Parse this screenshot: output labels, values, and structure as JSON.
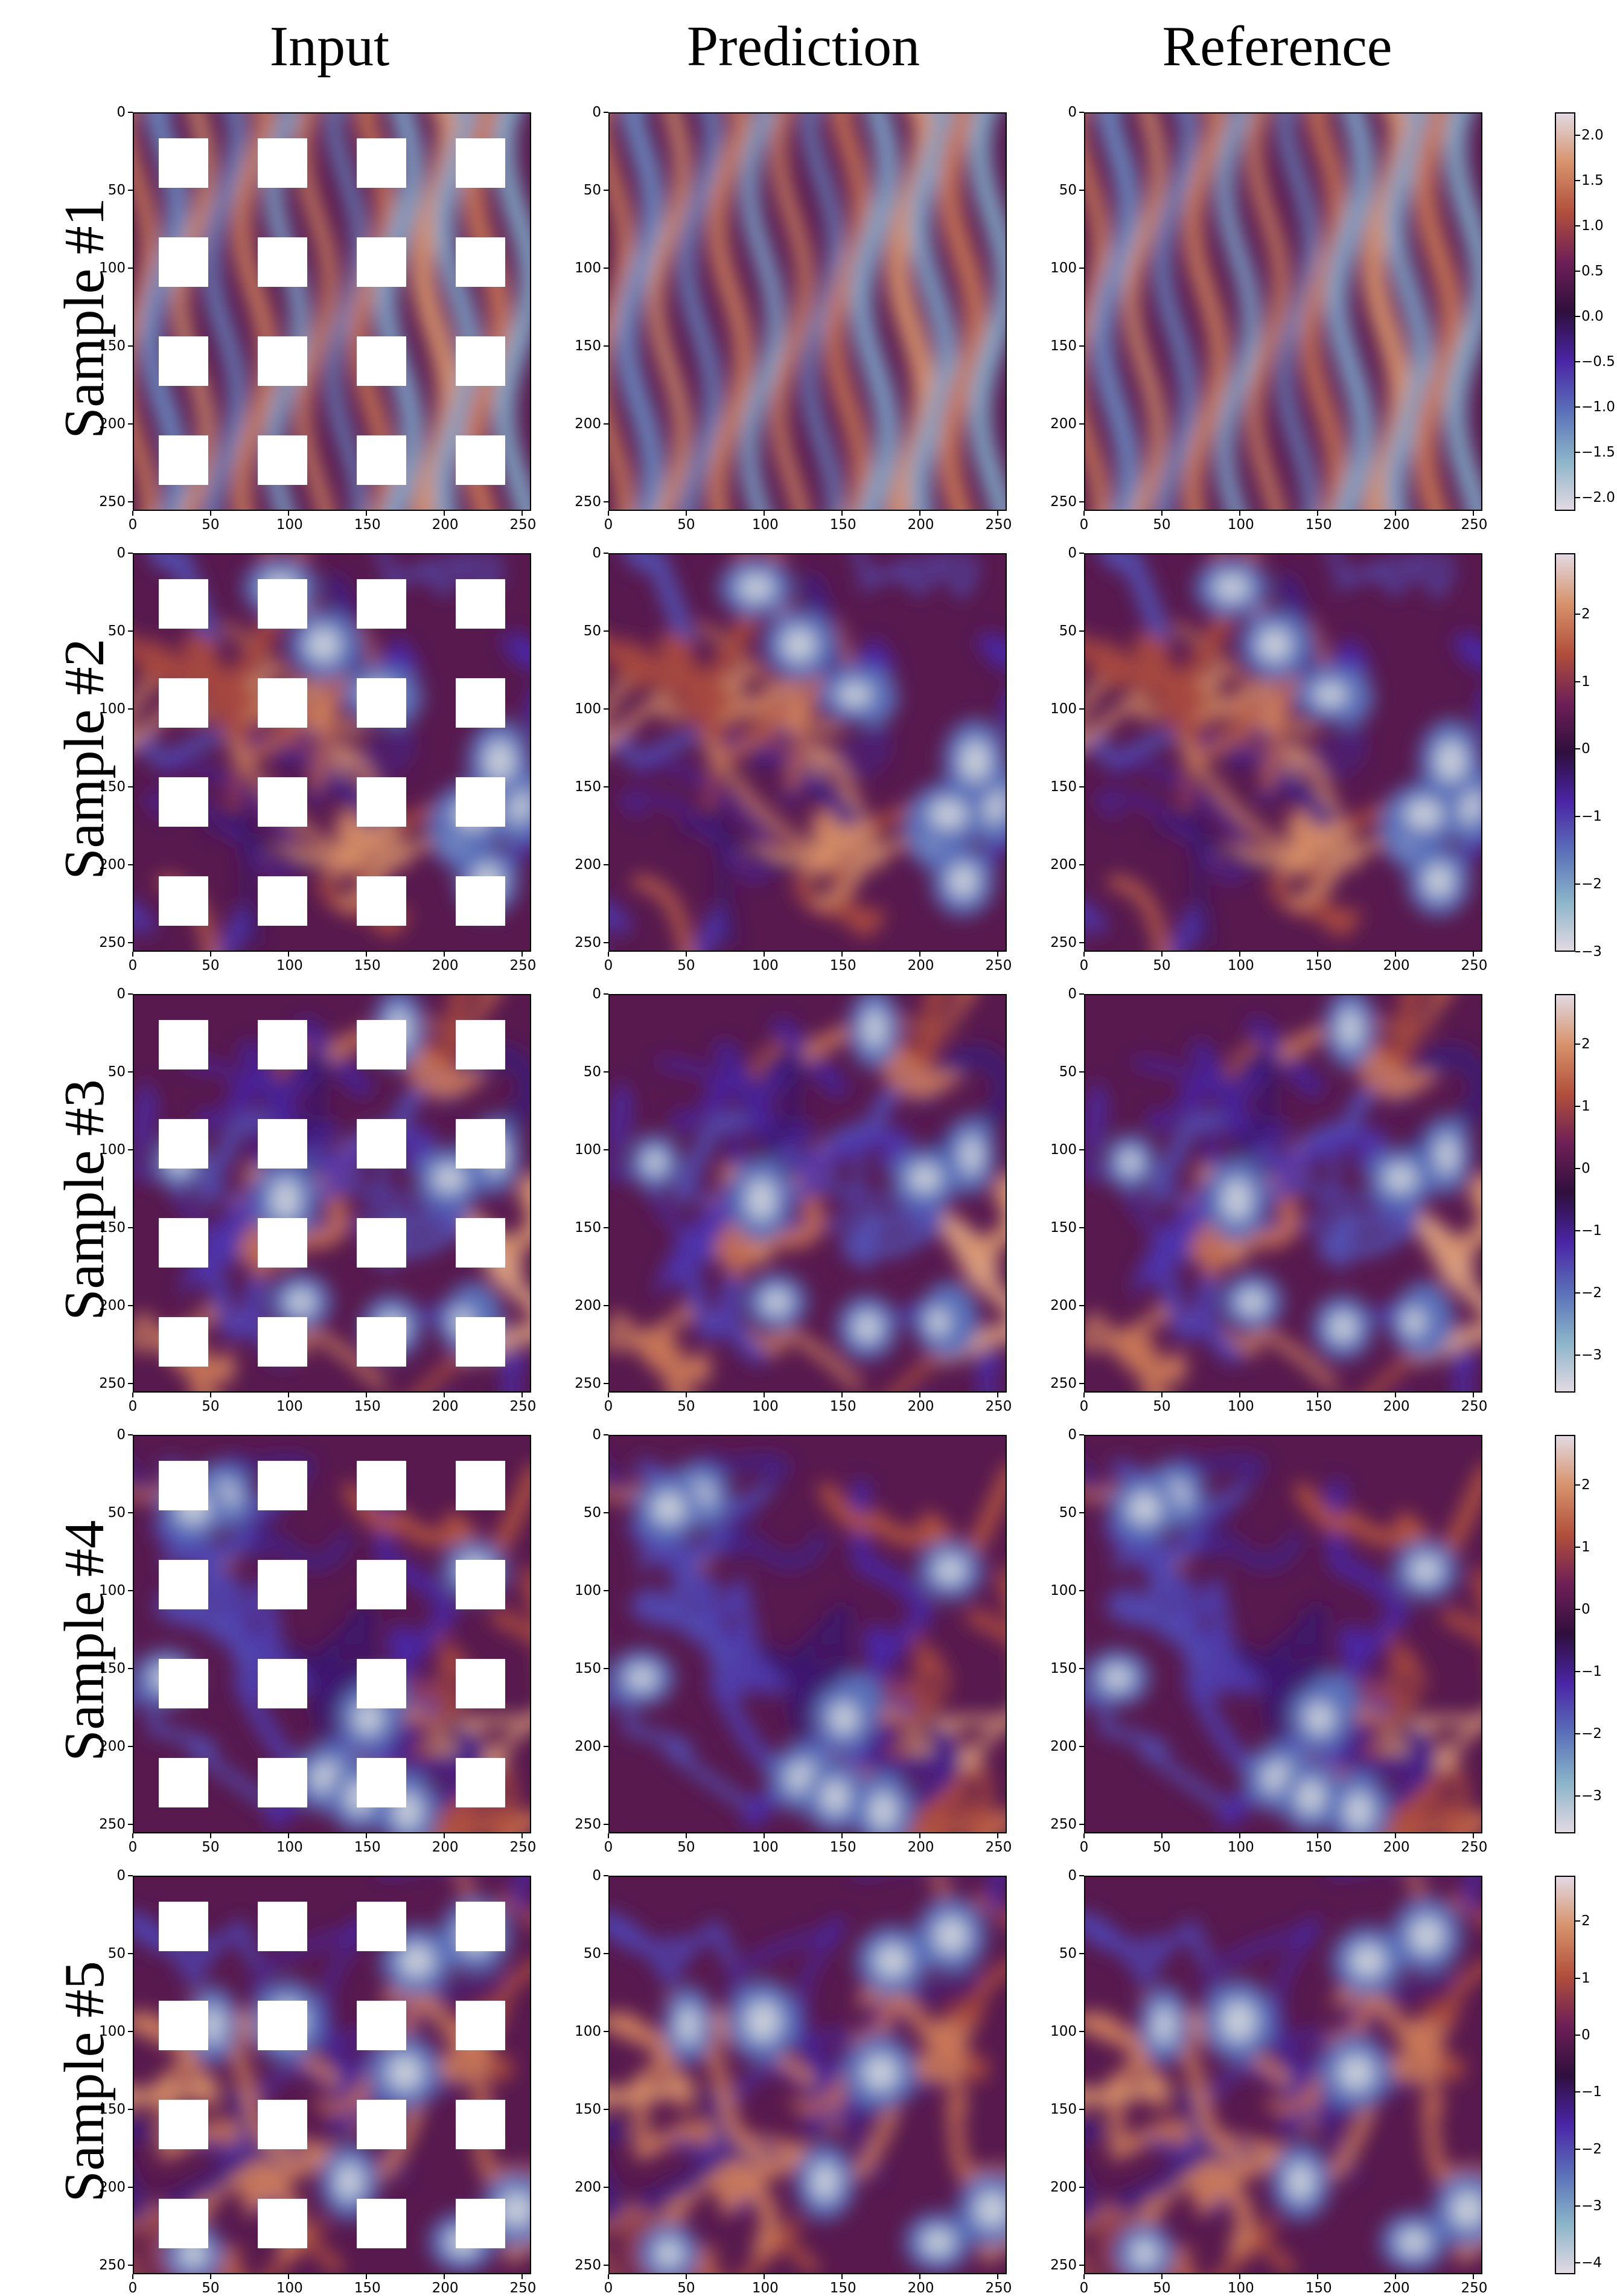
{
  "column_titles": [
    "Input",
    "Prediction",
    "Reference"
  ],
  "row_labels": [
    "Sample #1",
    "Sample #2",
    "Sample #3",
    "Sample #4",
    "Sample #5"
  ],
  "colormap": {
    "name": "twilight_shifted",
    "stops": [
      "#e2d9e2",
      "#8ab4c9",
      "#5a70b9",
      "#4a25a6",
      "#2f0f3d",
      "#6e1f57",
      "#b14f3c",
      "#d7926b",
      "#e2d9e2"
    ]
  },
  "chart_data": {
    "type": "heatmap",
    "grid_size": 256,
    "x_ticks": [
      0,
      50,
      100,
      150,
      200,
      250
    ],
    "y_ticks": [
      0,
      50,
      100,
      150,
      200,
      250
    ],
    "x_tick_labels": [
      "0",
      "50",
      "100",
      "150",
      "200",
      "250"
    ],
    "y_tick_labels": [
      "0",
      "50",
      "100",
      "150",
      "200",
      "250"
    ],
    "xlim": [
      0,
      256
    ],
    "ylim": [
      256,
      0
    ],
    "mask": {
      "description_values": "white square patches in the Input column, in data units",
      "x_starts": [
        16,
        80,
        144,
        208
      ],
      "y_starts": [
        16,
        80,
        144,
        208
      ],
      "size": 32
    },
    "samples": [
      {
        "label": "Sample #1",
        "colorbar_ticks": [
          2.0,
          1.5,
          1.0,
          0.5,
          0.0,
          -0.5,
          -1.0,
          -1.5,
          -2.0
        ],
        "colorbar_tick_labels": [
          "2.0",
          "1.5",
          "1.0",
          "0.5",
          "0.0",
          "−0.5",
          "−1.0",
          "−1.5",
          "−2.0"
        ],
        "vmin": -2.15,
        "vmax": 2.25,
        "seed": 11,
        "pattern": "stripes"
      },
      {
        "label": "Sample #2",
        "colorbar_ticks": [
          2,
          1,
          0,
          -1,
          -2,
          -3
        ],
        "colorbar_tick_labels": [
          "2",
          "1",
          "0",
          "−1",
          "−2",
          "−3"
        ],
        "vmin": -3.0,
        "vmax": 2.9,
        "seed": 23,
        "pattern": "turbulent"
      },
      {
        "label": "Sample #3",
        "colorbar_ticks": [
          2,
          1,
          0,
          -1,
          -2,
          -3
        ],
        "colorbar_tick_labels": [
          "2",
          "1",
          "0",
          "−1",
          "−2",
          "−3"
        ],
        "vmin": -3.6,
        "vmax": 2.8,
        "seed": 37,
        "pattern": "turbulent"
      },
      {
        "label": "Sample #4",
        "colorbar_ticks": [
          2,
          1,
          0,
          -1,
          -2,
          -3
        ],
        "colorbar_tick_labels": [
          "2",
          "1",
          "0",
          "−1",
          "−2",
          "−3"
        ],
        "vmin": -3.6,
        "vmax": 2.8,
        "seed": 53,
        "pattern": "turbulent"
      },
      {
        "label": "Sample #5",
        "colorbar_ticks": [
          2,
          1,
          0,
          -1,
          -2,
          -3,
          -4
        ],
        "colorbar_tick_labels": [
          "2",
          "1",
          "0",
          "−1",
          "−2",
          "−3",
          "−4"
        ],
        "vmin": -4.2,
        "vmax": 2.8,
        "seed": 71,
        "pattern": "turbulent"
      }
    ]
  }
}
